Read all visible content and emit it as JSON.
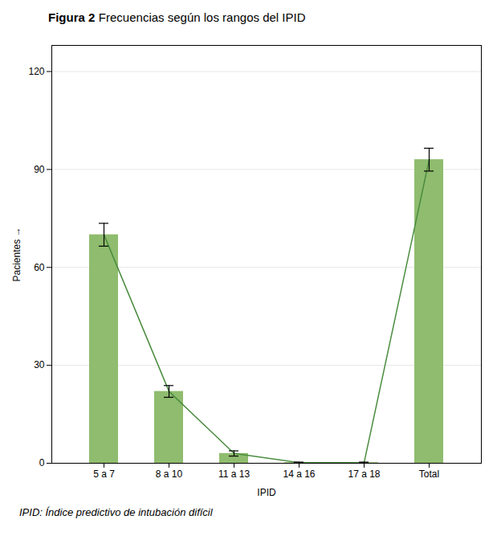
{
  "chart_data": {
    "type": "bar",
    "title": "Figura 2",
    "subtitle": "Frecuencias según los rangos del IPID",
    "caption": "IPID: Índice predictivo de intubación difícil",
    "xlabel": "IPID",
    "ylabel": "Pacientes",
    "categories": [
      "5 a 7",
      "8 a 10",
      "11 a 13",
      "14 a 16",
      "17 a 18",
      "Total"
    ],
    "series": [
      {
        "type": "bar",
        "color": "#8fbc6e",
        "values": [
          70,
          22,
          3,
          0.2,
          0.2,
          93
        ],
        "errors": [
          3.5,
          1.8,
          0.8,
          0.15,
          0.15,
          3.5
        ]
      },
      {
        "type": "line",
        "color": "#4a8c3f",
        "values": [
          70,
          22,
          3,
          0.2,
          0.2,
          93
        ]
      }
    ],
    "ylim": [
      0,
      128
    ],
    "yticks": [
      0,
      30,
      60,
      90,
      120
    ],
    "grid": true
  }
}
